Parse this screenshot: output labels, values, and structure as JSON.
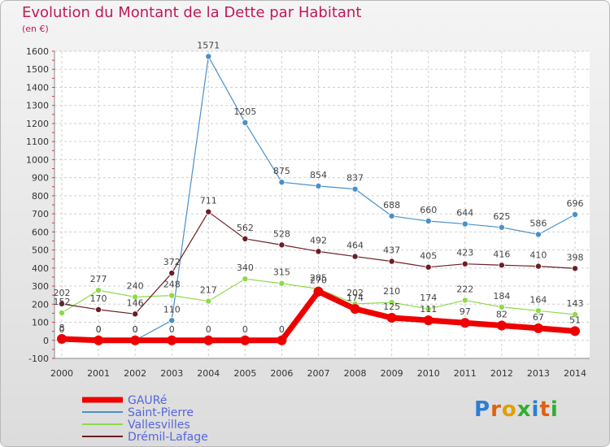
{
  "chart_data": {
    "type": "line",
    "title": "Evolution du Montant de la Dette par Habitant",
    "subtitle": "(en €)",
    "x": [
      "2000",
      "2001",
      "2002",
      "2003",
      "2004",
      "2005",
      "2006",
      "2007",
      "2008",
      "2009",
      "2010",
      "2011",
      "2012",
      "2013",
      "2014"
    ],
    "ylim": [
      -100,
      1600
    ],
    "yticks": [
      -100,
      0,
      100,
      200,
      300,
      400,
      500,
      600,
      700,
      800,
      900,
      1000,
      1100,
      1200,
      1300,
      1400,
      1500,
      1600
    ],
    "grid": true,
    "series": [
      {
        "name": "GAURé",
        "color": "#ee0000",
        "values": [
          8,
          0,
          0,
          0,
          0,
          0,
          0,
          270,
          174,
          125,
          111,
          97,
          82,
          67,
          51
        ]
      },
      {
        "name": "Saint-Pierre",
        "color": "#4a90c8",
        "values": [
          0,
          0,
          0,
          110,
          1571,
          1205,
          875,
          854,
          837,
          688,
          660,
          644,
          625,
          586,
          696
        ]
      },
      {
        "name": "Vallesvilles",
        "color": "#8fd94a",
        "values": [
          152,
          277,
          240,
          248,
          217,
          340,
          315,
          285,
          202,
          210,
          174,
          222,
          184,
          164,
          143
        ]
      },
      {
        "name": "Drémil-Lafage",
        "color": "#6b1e24",
        "values": [
          202,
          170,
          146,
          372,
          711,
          562,
          528,
          492,
          464,
          437,
          405,
          423,
          416,
          410,
          398
        ]
      }
    ]
  },
  "logo": {
    "text": "Proxiti"
  }
}
